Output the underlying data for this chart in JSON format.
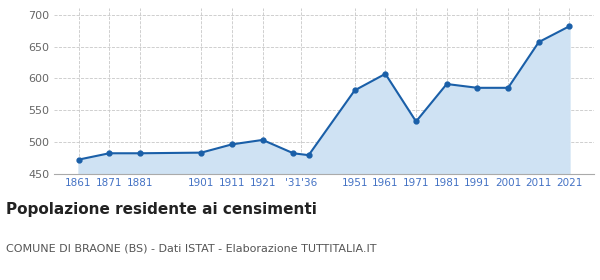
{
  "years": [
    1861,
    1871,
    1881,
    1901,
    1911,
    1921,
    1931,
    1936,
    1951,
    1961,
    1971,
    1981,
    1991,
    2001,
    2011,
    2021
  ],
  "population": [
    472,
    482,
    482,
    483,
    496,
    503,
    482,
    479,
    581,
    607,
    532,
    591,
    585,
    585,
    657,
    682
  ],
  "x_tick_positions": [
    1861,
    1871,
    1881,
    1901,
    1911,
    1921,
    1933.5,
    1951,
    1961,
    1971,
    1981,
    1991,
    2001,
    2011,
    2021
  ],
  "x_tick_labels": [
    "1861",
    "1871",
    "1881",
    "1901",
    "1911",
    "1921",
    "'31'36",
    "1951",
    "1961",
    "1971",
    "1981",
    "1991",
    "2001",
    "2011",
    "2021"
  ],
  "ylim": [
    450,
    710
  ],
  "xlim": [
    1853,
    2029
  ],
  "yticks": [
    450,
    500,
    550,
    600,
    650,
    700
  ],
  "line_color": "#1a5fa8",
  "fill_color": "#cfe2f3",
  "marker_color": "#1a5fa8",
  "grid_color": "#c8c8c8",
  "background_color": "#ffffff",
  "title": "Popolazione residente ai censimenti",
  "subtitle": "COMUNE DI BRAONE (BS) - Dati ISTAT - Elaborazione TUTTITALIA.IT",
  "title_fontsize": 11,
  "subtitle_fontsize": 8,
  "tick_label_color": "#4472c4",
  "ytick_label_color": "#666666"
}
